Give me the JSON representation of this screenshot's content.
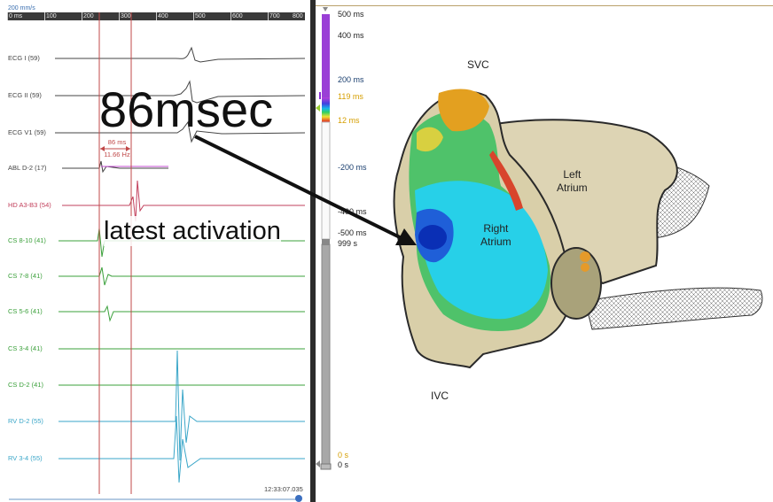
{
  "sweep": {
    "speed": "200 mm/s",
    "ticks": [
      "0 ms",
      "100",
      "200",
      "300",
      "400",
      "500",
      "600",
      "700",
      "800"
    ]
  },
  "channels": [
    {
      "id": "ecg1",
      "label": "ECG I (59)",
      "color": "#444444"
    },
    {
      "id": "ecg2",
      "label": "ECG II (59)",
      "color": "#444444"
    },
    {
      "id": "ecgv1",
      "label": "ECG V1 (59)",
      "color": "#444444"
    },
    {
      "id": "abl",
      "label": "ABL  D-2 (17)",
      "color": "#444444"
    },
    {
      "id": "hd",
      "label": "HD  A3-B3 (54)",
      "color": "#c2405c"
    },
    {
      "id": "cs810",
      "label": "CS  8-10 (41)",
      "color": "#3ba03b"
    },
    {
      "id": "cs78",
      "label": "CS  7-8 (41)",
      "color": "#3ba03b"
    },
    {
      "id": "cs56",
      "label": "CS  5-6 (41)",
      "color": "#3ba03b"
    },
    {
      "id": "cs34",
      "label": "CS  3-4 (41)",
      "color": "#3ba03b"
    },
    {
      "id": "csd2",
      "label": "CS  D-2 (41)",
      "color": "#3ba03b"
    },
    {
      "id": "rvd2",
      "label": "RV  D-2 (55)",
      "color": "#3aa6c8"
    },
    {
      "id": "rv34",
      "label": "RV  3-4 (55)",
      "color": "#3aa6c8"
    }
  ],
  "caliper": {
    "interval": "86 ms",
    "frequency": "11.66 Hz"
  },
  "timestamp": "12:33:07.035",
  "scale": {
    "top": "500 ms",
    "l400": "400 ms",
    "l200": "200 ms",
    "window_high": "119 ms",
    "window_low": "12 ms",
    "lneg200": "-200 ms",
    "lneg400": "-400 ms",
    "lneg500": "-500 ms",
    "total": "999 s",
    "zero_accent": "0 s",
    "zero": "0 s",
    "colors": {
      "purple": "#9a3fd6",
      "accent": "#d59e00",
      "track": "#a8a8a8"
    }
  },
  "annotation": {
    "interval_text": "86msec",
    "caption": "latest activation"
  },
  "anatomy": {
    "svc": "SVC",
    "ivc": "IVC",
    "left_atrium": [
      "Left",
      "Atrium"
    ],
    "right_atrium": [
      "Right",
      "Atrium"
    ]
  }
}
